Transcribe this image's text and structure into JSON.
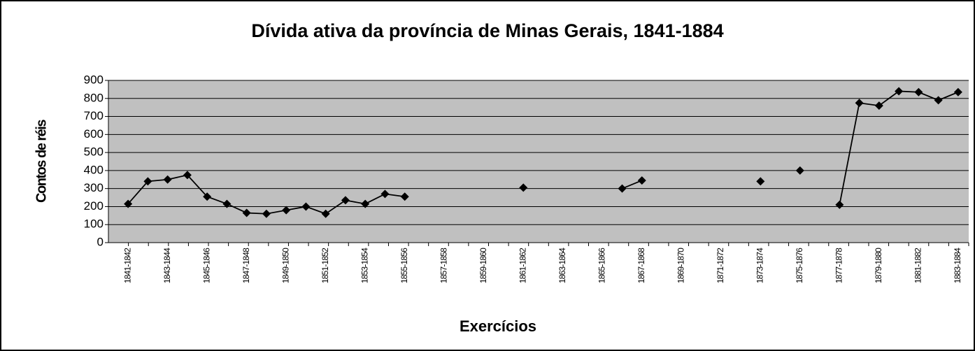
{
  "chart_data": {
    "type": "line",
    "title": "Dívida ativa da província de Minas Gerais, 1841-1884",
    "x_label": "Exercícios",
    "y_label": "Contos de réis",
    "categories": [
      "1841-1842",
      null,
      "1843-1844",
      null,
      "1845-1846",
      null,
      "1847-1848",
      null,
      "1849-1850",
      null,
      "1851-1852",
      null,
      "1853-1854",
      null,
      "1855-1856",
      null,
      "1857-1858",
      null,
      "1859-1860",
      null,
      "1861-1862",
      null,
      "1863-1864",
      null,
      "1865-1866",
      null,
      "1867-1868",
      null,
      "1869-1870",
      null,
      "1871-1872",
      null,
      "1873-1874",
      null,
      "1875-1876",
      null,
      "1877-1878",
      null,
      "1879-1880",
      null,
      "1881-1882",
      null,
      "1883-1884"
    ],
    "series": [
      {
        "name": "Dívida ativa",
        "color": "#000000",
        "values": [
          215,
          340,
          350,
          375,
          255,
          215,
          165,
          160,
          180,
          200,
          160,
          235,
          215,
          270,
          255,
          null,
          null,
          null,
          null,
          null,
          305,
          null,
          null,
          null,
          null,
          300,
          345,
          null,
          null,
          null,
          null,
          null,
          340,
          null,
          400,
          null,
          210,
          775,
          760,
          840,
          835,
          790,
          835
        ]
      }
    ],
    "ylim": [
      0,
      900
    ],
    "yticks": [
      0,
      100,
      200,
      300,
      400,
      500,
      600,
      700,
      800,
      900
    ],
    "grid": true
  }
}
